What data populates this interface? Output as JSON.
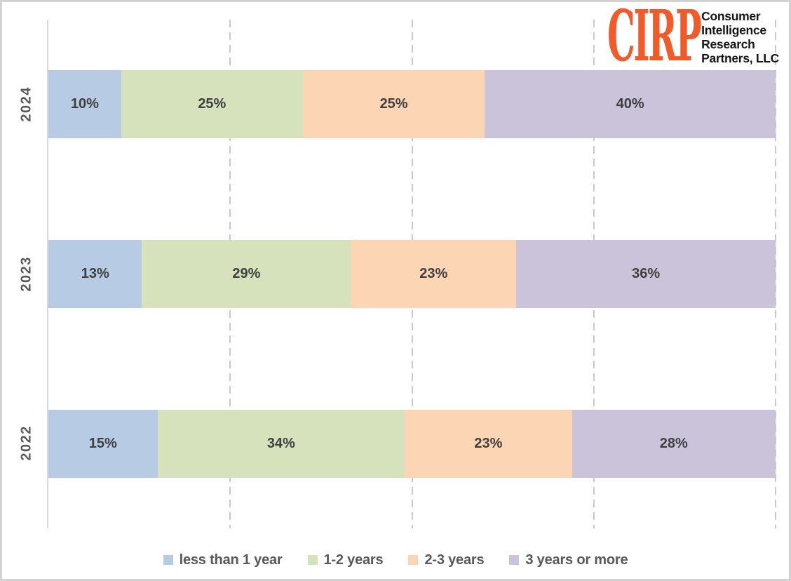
{
  "logo": {
    "brand": "CIRP",
    "name_lines": [
      "Consumer",
      "Intelligence",
      "Research",
      "Partners, LLC"
    ],
    "brand_color": "#f15a29"
  },
  "colors": {
    "blue": "#b7cce4",
    "green": "#d6e2bc",
    "orange": "#fcd5b5",
    "purple": "#cbc3d9",
    "value_label_text": "#3f3f3f",
    "axis_label_text": "#595959",
    "legend_text": "#595959",
    "gridline": "#c9c9c9",
    "axis_line": "#d9d9d9",
    "frame_border": "#d2d2d2"
  },
  "chart_data": {
    "type": "bar",
    "orientation": "horizontal",
    "stacked": true,
    "normalized_100pct": true,
    "title": "",
    "xlabel": "",
    "ylabel": "",
    "xlim": [
      0,
      100
    ],
    "grid": "vertical-dashed",
    "gridlines_percent": [
      25,
      50,
      75,
      100
    ],
    "legend_position": "bottom",
    "categories": [
      "2024",
      "2023",
      "2022"
    ],
    "series": [
      {
        "name": "less than 1 year",
        "color_key": "blue",
        "values": [
          10,
          13,
          15
        ]
      },
      {
        "name": "1-2 years",
        "color_key": "green",
        "values": [
          25,
          29,
          34
        ]
      },
      {
        "name": "2-3 years",
        "color_key": "orange",
        "values": [
          25,
          23,
          23
        ]
      },
      {
        "name": "3 years or more",
        "color_key": "purple",
        "values": [
          40,
          36,
          28
        ]
      }
    ],
    "value_suffix": "%",
    "data_labels": {
      "2024": [
        "10%",
        "25%",
        "25%",
        "40%"
      ],
      "2023": [
        "13%",
        "29%",
        "23%",
        "36%"
      ],
      "2022": [
        "15%",
        "34%",
        "23%",
        "28%"
      ]
    }
  },
  "legend": {
    "items": [
      {
        "label": "less than 1 year",
        "color_key": "blue"
      },
      {
        "label": "1-2 years",
        "color_key": "green"
      },
      {
        "label": "2-3 years",
        "color_key": "orange"
      },
      {
        "label": "3 years or more",
        "color_key": "purple"
      }
    ]
  }
}
